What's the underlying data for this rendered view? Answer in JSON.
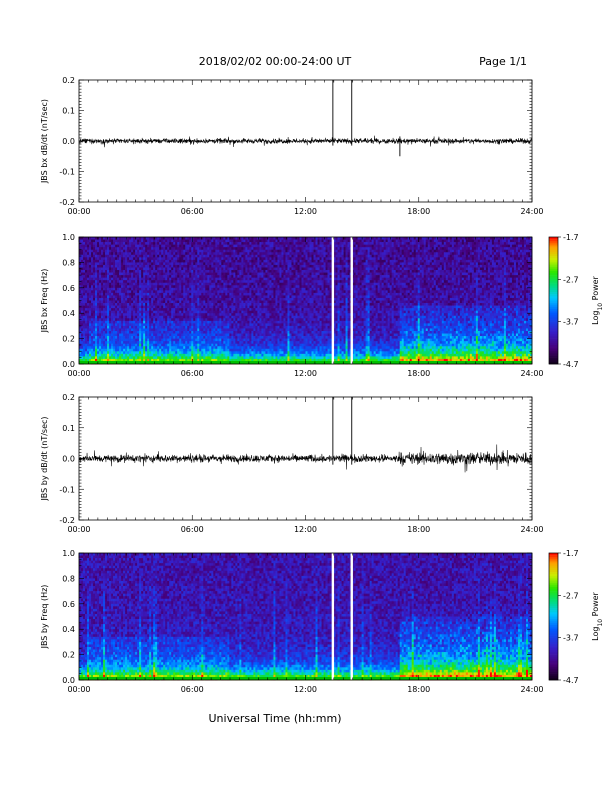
{
  "header": {
    "title": "2018/02/02  00:00-24:00 UT",
    "page": "Page 1/1"
  },
  "footer": {
    "xlabel": "Universal Time (hh:mm)"
  },
  "chart_data": [
    {
      "type": "line",
      "title": "",
      "ylabel": "JBS bx dB/dt (nT/sec)",
      "xlabel": "",
      "x_range_hours": [
        0,
        24
      ],
      "xticks": [
        "00:00",
        "06:00",
        "12:00",
        "18:00",
        "24:00"
      ],
      "ylim": [
        -0.2,
        0.2
      ],
      "yticks": [
        "0.2",
        "0.1",
        "0.0",
        "-0.1",
        "-0.2"
      ],
      "baseline": 0.0,
      "noise_amplitude": [
        {
          "from_hour": 0,
          "to_hour": 24,
          "amplitude": 0.012
        }
      ],
      "spikes": [
        {
          "hour": 13.45,
          "min": -0.015,
          "max": 0.2
        },
        {
          "hour": 14.45,
          "min": -0.015,
          "max": 0.2
        },
        {
          "hour": 17.0,
          "min": -0.05,
          "max": 0.015
        }
      ],
      "grid": false
    },
    {
      "type": "heatmap",
      "title": "",
      "ylabel": "JBS bx Freq (Hz)",
      "xlabel": "",
      "x_range_hours": [
        0,
        24
      ],
      "xticks": [
        "00:00",
        "06:00",
        "12:00",
        "18:00",
        "24:00"
      ],
      "ylim": [
        0,
        1.0
      ],
      "yticks": [
        "1.0",
        "0.8",
        "0.6",
        "0.4",
        "0.2",
        "0.0"
      ],
      "colorbar": {
        "label": "Log10 Power",
        "label_base": "Log",
        "label_sub": "10",
        "label_rest": " Power",
        "min": -4.7,
        "max": -1.7,
        "ticks": [
          "-1.7",
          "-2.7",
          "-3.7",
          "-4.7"
        ]
      },
      "data_gaps_hours": [
        13.45,
        14.45
      ],
      "enhanced_intervals": [
        {
          "from_hour": 17.0,
          "to_hour": 24.0,
          "max_freq_hz": 0.45
        }
      ]
    },
    {
      "type": "line",
      "title": "",
      "ylabel": "JBS by dB/dt (nT/sec)",
      "xlabel": "",
      "x_range_hours": [
        0,
        24
      ],
      "xticks": [
        "00:00",
        "06:00",
        "12:00",
        "18:00",
        "24:00"
      ],
      "ylim": [
        -0.2,
        0.2
      ],
      "yticks": [
        "0.2",
        "0.1",
        "0.0",
        "-0.1",
        "-0.2"
      ],
      "baseline": 0.0,
      "noise_amplitude": [
        {
          "from_hour": 0,
          "to_hour": 17,
          "amplitude": 0.018
        },
        {
          "from_hour": 17,
          "to_hour": 24,
          "amplitude": 0.03
        }
      ],
      "spikes": [
        {
          "hour": 13.45,
          "min": -0.02,
          "max": 0.2
        },
        {
          "hour": 14.45,
          "min": -0.02,
          "max": 0.2
        }
      ],
      "grid": false
    },
    {
      "type": "heatmap",
      "title": "",
      "ylabel": "JBS by Freq (Hz)",
      "xlabel": "",
      "x_range_hours": [
        0,
        24
      ],
      "xticks": [
        "00:00",
        "06:00",
        "12:00",
        "18:00",
        "24:00"
      ],
      "ylim": [
        0,
        1.0
      ],
      "yticks": [
        "1.0",
        "0.8",
        "0.6",
        "0.4",
        "0.2",
        "0.0"
      ],
      "colorbar": {
        "label": "Log10 Power",
        "label_base": "Log",
        "label_sub": "10",
        "label_rest": " Power",
        "min": -4.7,
        "max": -1.7,
        "ticks": [
          "-1.7",
          "-2.7",
          "-3.7",
          "-4.7"
        ]
      },
      "data_gaps_hours": [
        13.45,
        14.45
      ],
      "enhanced_intervals": [
        {
          "from_hour": 17.0,
          "to_hour": 24.0,
          "max_freq_hz": 0.5
        }
      ]
    }
  ]
}
